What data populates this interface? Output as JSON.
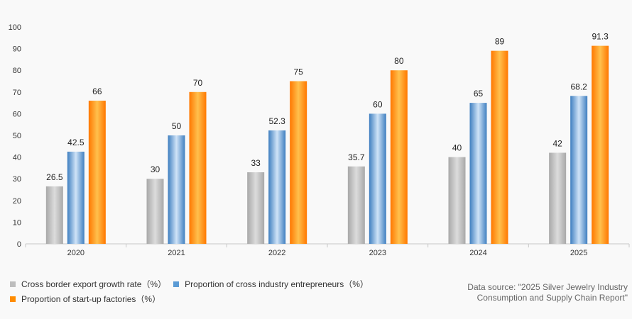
{
  "chart_data": {
    "type": "bar",
    "title": "",
    "xlabel": "",
    "ylabel": "",
    "ylim": [
      0,
      100
    ],
    "yticks": [
      0,
      10,
      20,
      30,
      40,
      50,
      60,
      70,
      80,
      90,
      100
    ],
    "categories": [
      "2020",
      "2021",
      "2022",
      "2023",
      "2024",
      "2025"
    ],
    "series": [
      {
        "name": "Cross border export growth rate（%）",
        "values": [
          26.5,
          30,
          33,
          35.7,
          40,
          42
        ],
        "color": "#bdbdbd"
      },
      {
        "name": "Proportion of cross industry entrepreneurs（%）",
        "values": [
          42.5,
          50,
          52.3,
          60,
          65,
          68.2
        ],
        "color": "#5b9bd5"
      },
      {
        "name": "Proportion of start-up factories（%）",
        "values": [
          66,
          70,
          75,
          80,
          89,
          91.3
        ],
        "color": "#ff8c00"
      }
    ],
    "legend_position": "bottom-left",
    "source_lines": [
      "Data source: \"2025 Silver Jewelry Industry",
      "Consumption and Supply Chain Report\""
    ]
  }
}
